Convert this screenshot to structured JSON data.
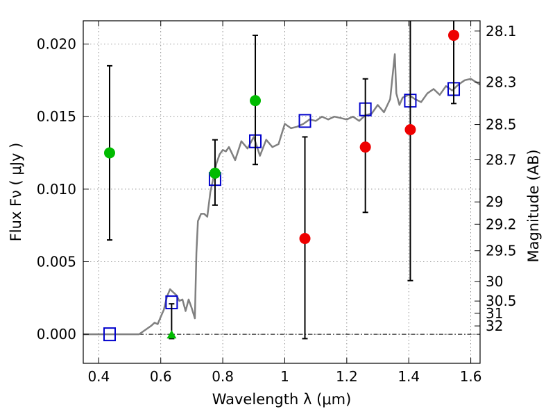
{
  "chart_data": {
    "type": "scatter",
    "xlabel": "Wavelength  λ (μm)",
    "ylabel": "Flux  Fν  ( μJy )",
    "ylabel2": "Magnitude (AB)",
    "xlim": [
      0.35,
      1.63
    ],
    "ylim": [
      -0.002,
      0.0216
    ],
    "grid": true,
    "x_ticks": [
      0.4,
      0.6,
      0.8,
      1.0,
      1.2,
      1.4,
      1.6
    ],
    "x_tick_labels": [
      "0.4",
      "0.6",
      "0.8",
      "1",
      "1.2",
      "1.4",
      "1.6"
    ],
    "y_ticks": [
      0.0,
      0.005,
      0.01,
      0.015,
      0.02
    ],
    "y_tick_labels": [
      "0.000",
      "0.005",
      "0.010",
      "0.015",
      "0.020"
    ],
    "y2_tick_labels": [
      "28.1",
      "28.3",
      "28.5",
      "28.7",
      "29",
      "29.2",
      "29.5",
      "30",
      "30.5",
      "31",
      "32"
    ],
    "y2_tick_values": [
      28.1,
      28.3,
      28.5,
      28.7,
      29.0,
      29.2,
      29.5,
      30.0,
      30.5,
      31.0,
      32.0
    ],
    "zero_line": 0.0,
    "series": [
      {
        "kind": "line",
        "color": "#808080",
        "x": [
          0.35,
          0.53,
          0.55,
          0.57,
          0.58,
          0.59,
          0.6,
          0.61,
          0.62,
          0.63,
          0.64,
          0.65,
          0.66,
          0.67,
          0.68,
          0.69,
          0.7,
          0.71,
          0.715,
          0.72,
          0.73,
          0.74,
          0.75,
          0.76,
          0.77,
          0.78,
          0.79,
          0.8,
          0.81,
          0.82,
          0.84,
          0.86,
          0.88,
          0.9,
          0.92,
          0.94,
          0.96,
          0.98,
          1.0,
          1.02,
          1.04,
          1.06,
          1.08,
          1.1,
          1.12,
          1.14,
          1.16,
          1.18,
          1.2,
          1.22,
          1.24,
          1.26,
          1.28,
          1.3,
          1.32,
          1.34,
          1.355,
          1.36,
          1.37,
          1.38,
          1.4,
          1.42,
          1.44,
          1.46,
          1.48,
          1.5,
          1.52,
          1.54,
          1.56,
          1.58,
          1.6,
          1.63
        ],
        "y": [
          0.0,
          0.0,
          0.0003,
          0.0006,
          0.0008,
          0.0007,
          0.0012,
          0.0017,
          0.0026,
          0.0031,
          0.0029,
          0.0027,
          0.0023,
          0.0024,
          0.0016,
          0.0024,
          0.0018,
          0.0011,
          0.0056,
          0.0078,
          0.0083,
          0.0083,
          0.0081,
          0.0098,
          0.0108,
          0.0118,
          0.0124,
          0.0127,
          0.0126,
          0.0129,
          0.012,
          0.0133,
          0.0128,
          0.0136,
          0.0123,
          0.0134,
          0.0129,
          0.0131,
          0.0145,
          0.0142,
          0.0143,
          0.0145,
          0.0148,
          0.0147,
          0.015,
          0.0148,
          0.015,
          0.0149,
          0.0148,
          0.015,
          0.0147,
          0.0151,
          0.0152,
          0.0158,
          0.0153,
          0.0162,
          0.0193,
          0.0166,
          0.0158,
          0.0163,
          0.0165,
          0.0162,
          0.016,
          0.0166,
          0.0169,
          0.0165,
          0.0171,
          0.0168,
          0.0172,
          0.0175,
          0.0176,
          0.0172
        ]
      },
      {
        "kind": "open-square",
        "color": "#0000cc",
        "x": [
          0.435,
          0.635,
          0.775,
          0.905,
          1.065,
          1.26,
          1.405,
          1.545
        ],
        "y": [
          0.0,
          0.0022,
          0.0107,
          0.0133,
          0.0147,
          0.0155,
          0.0161,
          0.0169
        ]
      },
      {
        "kind": "errorbar",
        "color": "#000000",
        "x": [
          0.435,
          0.635,
          0.775,
          0.905,
          1.065,
          1.26,
          1.405,
          1.545
        ],
        "y_low": [
          0.0065,
          -0.0003,
          0.0089,
          0.0117,
          -0.0003,
          0.0084,
          0.0037,
          0.0159
        ],
        "y_high": [
          0.0185,
          0.0021,
          0.0134,
          0.0206,
          0.0136,
          0.0176,
          0.0216,
          0.0216
        ]
      },
      {
        "kind": "filled-circle",
        "color": "#00bb00",
        "x": [
          0.435,
          0.775,
          0.905
        ],
        "y": [
          0.0125,
          0.0111,
          0.0161
        ]
      },
      {
        "kind": "filled-triangle",
        "color": "#00bb00",
        "x": [
          0.635
        ],
        "y": [
          0.0
        ]
      },
      {
        "kind": "filled-circle",
        "color": "#ee0000",
        "x": [
          1.065,
          1.26,
          1.405,
          1.545
        ],
        "y": [
          0.0066,
          0.0129,
          0.0141,
          0.0206
        ]
      }
    ]
  }
}
